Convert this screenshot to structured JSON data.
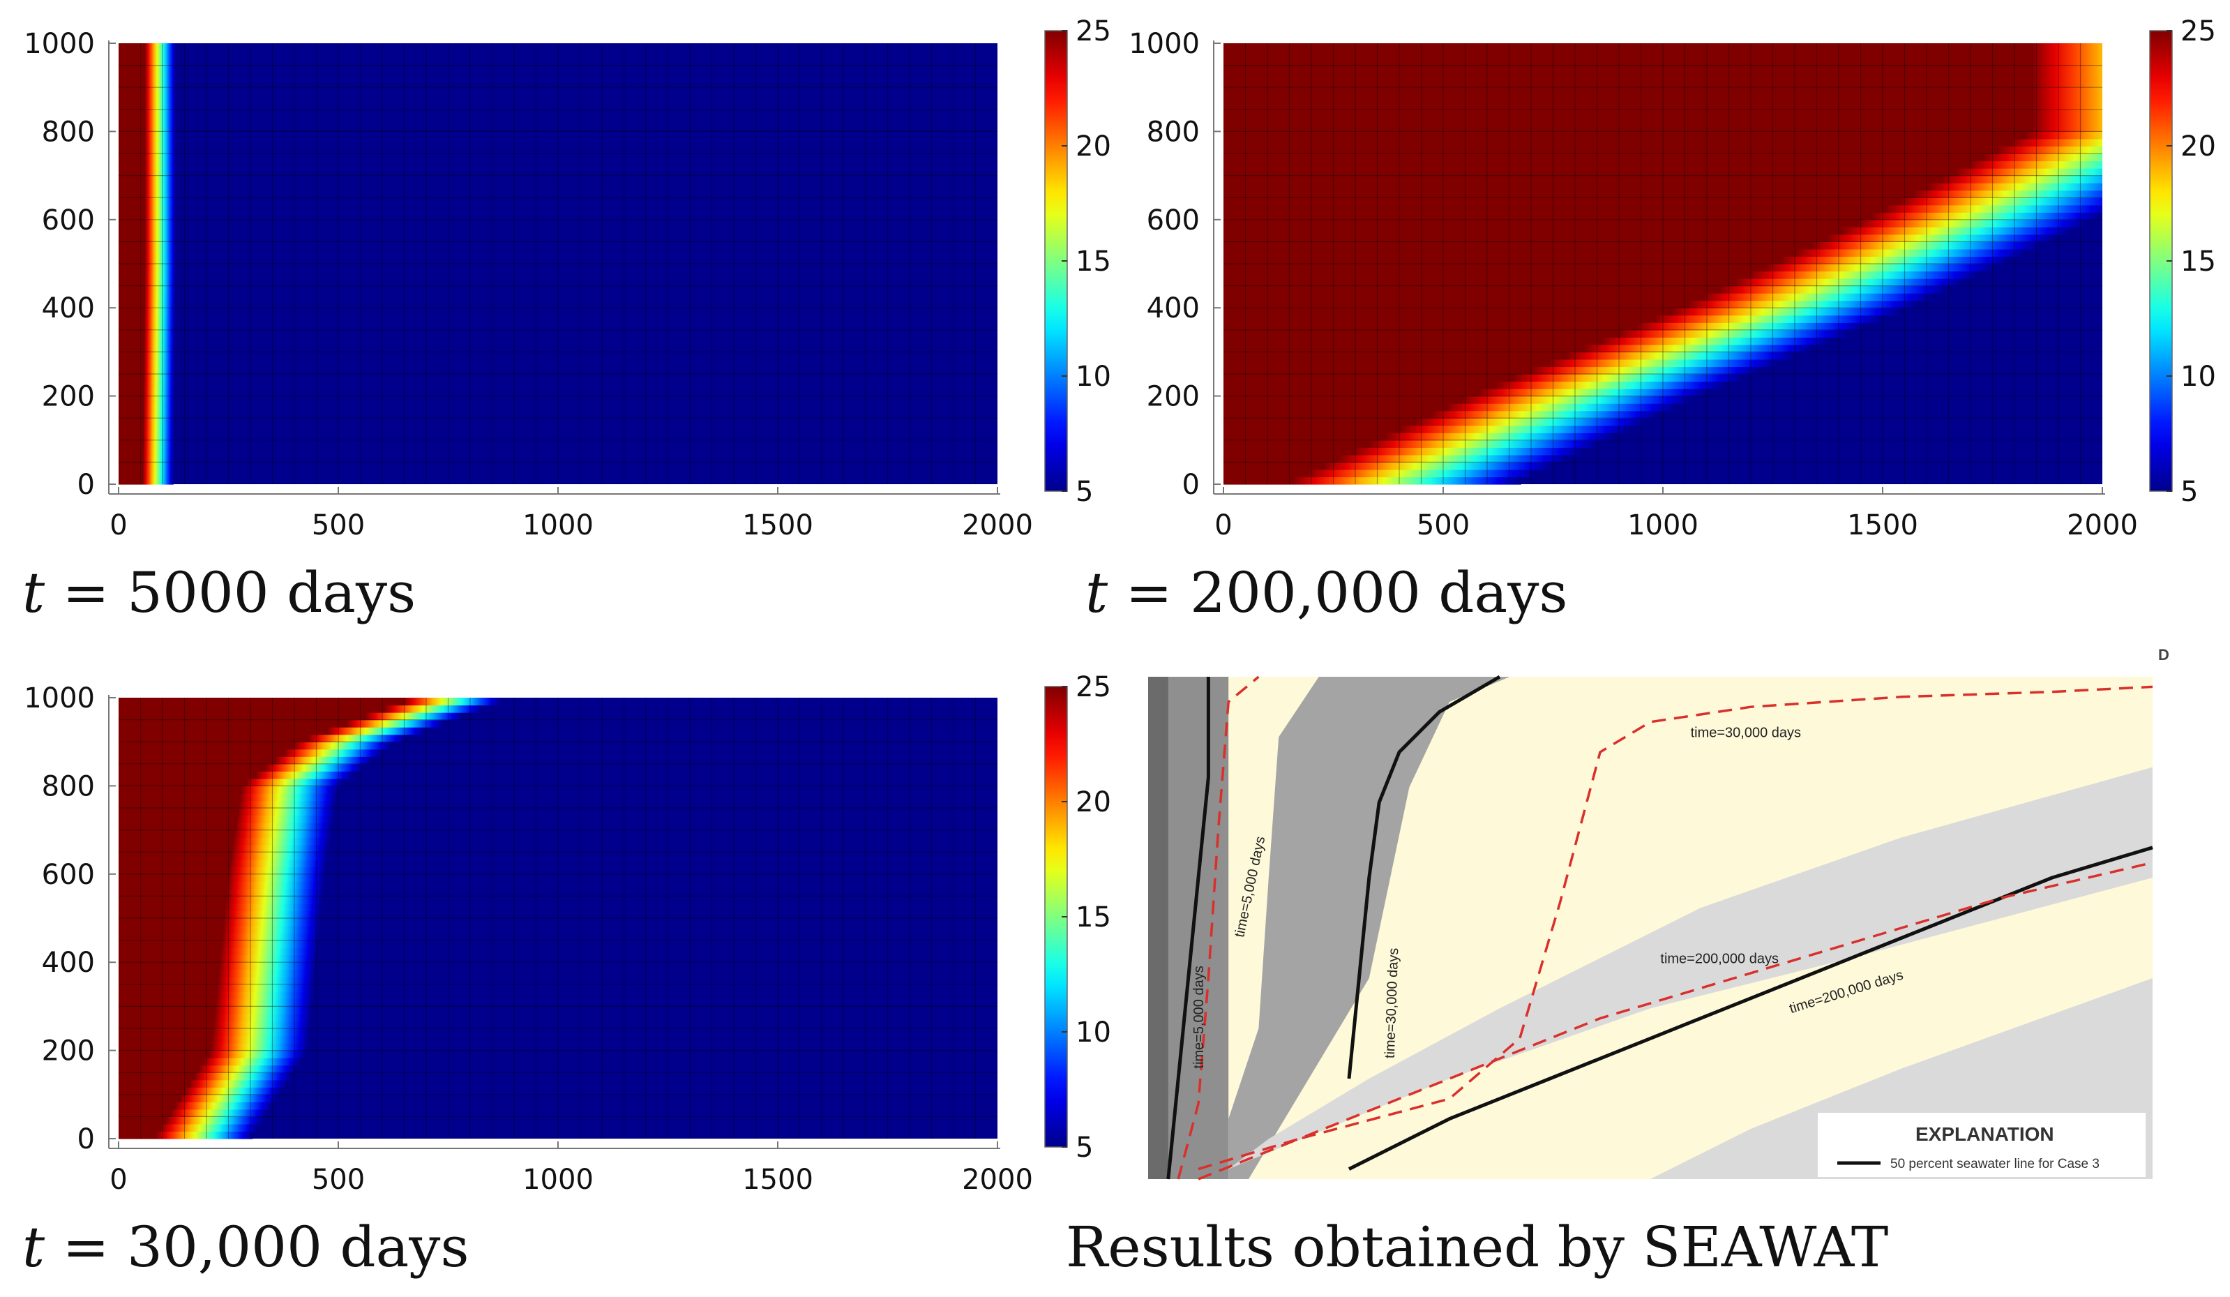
{
  "colorbar": {
    "ticks": [
      5,
      10,
      15,
      20,
      25
    ],
    "vmin": 5,
    "vmax": 25
  },
  "captions": {
    "p1": {
      "var": "t",
      "rest": " = 5000 days"
    },
    "p2": {
      "var": "t",
      "rest": " = 200,000 days"
    },
    "p3": {
      "var": "t",
      "rest": " = 30,000 days"
    },
    "p4": "Results obtained by SEAWAT"
  },
  "chart_data": [
    {
      "type": "heatmap",
      "id": "t5000",
      "title": "t = 5000 days",
      "xlim": [
        0,
        2000
      ],
      "ylim": [
        0,
        1000
      ],
      "xticks": [
        0,
        500,
        1000,
        1500,
        2000
      ],
      "yticks": [
        0,
        200,
        400,
        600,
        800,
        1000
      ],
      "clim": [
        5,
        25
      ],
      "colormap": "jet",
      "front_x_at_y": [
        [
          0,
          90
        ],
        [
          500,
          95
        ],
        [
          1000,
          95
        ]
      ],
      "front_width": 70
    },
    {
      "type": "heatmap",
      "id": "t200000",
      "title": "t = 200,000 days",
      "xlim": [
        0,
        2000
      ],
      "ylim": [
        0,
        1000
      ],
      "xticks": [
        0,
        500,
        1000,
        1500,
        2000
      ],
      "yticks": [
        0,
        200,
        400,
        600,
        800,
        1000
      ],
      "clim": [
        5,
        25
      ],
      "colormap": "jet",
      "front_x_at_y": [
        [
          0,
          400
        ],
        [
          200,
          820
        ],
        [
          400,
          1300
        ],
        [
          600,
          1720
        ],
        [
          800,
          2100
        ]
      ],
      "front_width": 520
    },
    {
      "type": "heatmap",
      "id": "t30000",
      "title": "t = 30,000 days",
      "xlim": [
        0,
        2000
      ],
      "ylim": [
        0,
        1000
      ],
      "xticks": [
        0,
        500,
        1000,
        1500,
        2000
      ],
      "yticks": [
        0,
        200,
        400,
        600,
        800,
        1000
      ],
      "clim": [
        5,
        25
      ],
      "colormap": "jet",
      "front_x_at_y": [
        [
          0,
          190
        ],
        [
          200,
          320
        ],
        [
          400,
          340
        ],
        [
          600,
          360
        ],
        [
          800,
          390
        ],
        [
          900,
          520
        ],
        [
          1000,
          780
        ]
      ],
      "front_width": 220
    },
    {
      "type": "line",
      "id": "seawat",
      "title": "Results obtained by SEAWAT",
      "xlim": [
        0,
        100
      ],
      "ylim": [
        0,
        100
      ],
      "series": [
        {
          "name": "SEAWAT time=5,000 days (black)",
          "x": [
            2,
            3,
            4,
            5,
            6,
            6
          ],
          "y": [
            0,
            20,
            40,
            60,
            80,
            100
          ]
        },
        {
          "name": "SEAWAT time=30,000 days (black)",
          "x": [
            20,
            21,
            22,
            23,
            25,
            29,
            35
          ],
          "y": [
            20,
            40,
            60,
            75,
            85,
            93,
            100
          ]
        },
        {
          "name": "SEAWAT time=200,000 days (black)",
          "x": [
            20,
            30,
            40,
            50,
            60,
            70,
            80,
            90,
            100
          ],
          "y": [
            2,
            12,
            20,
            28,
            36,
            44,
            52,
            60,
            66
          ]
        },
        {
          "name": "Model time=5,000 days (red dashed)",
          "x": [
            3,
            5,
            6,
            7,
            8,
            11
          ],
          "y": [
            0,
            15,
            40,
            70,
            95,
            100
          ]
        },
        {
          "name": "Model time=30,000 days (red dashed)",
          "x": [
            5,
            15,
            30,
            37,
            41,
            45,
            50,
            60,
            75,
            90,
            100
          ],
          "y": [
            0,
            8,
            16,
            28,
            55,
            85,
            91,
            94,
            96,
            97,
            98
          ]
        },
        {
          "name": "Model time=200,000 days (red dashed)",
          "x": [
            5,
            15,
            25,
            35,
            45,
            55,
            65,
            75,
            85,
            100
          ],
          "y": [
            2,
            8,
            16,
            24,
            32,
            38,
            44,
            50,
            56,
            63
          ]
        }
      ],
      "labels": [
        "time=5,000 days",
        "time=5,000 days",
        "time=30,000 days",
        "time=30,000 days",
        "time=200,000 days",
        "time=200,000 days"
      ],
      "explanation_title": "EXPLANATION",
      "explanation_entry": "50 percent seawater line for Case 3",
      "corner_mark": "D"
    }
  ]
}
